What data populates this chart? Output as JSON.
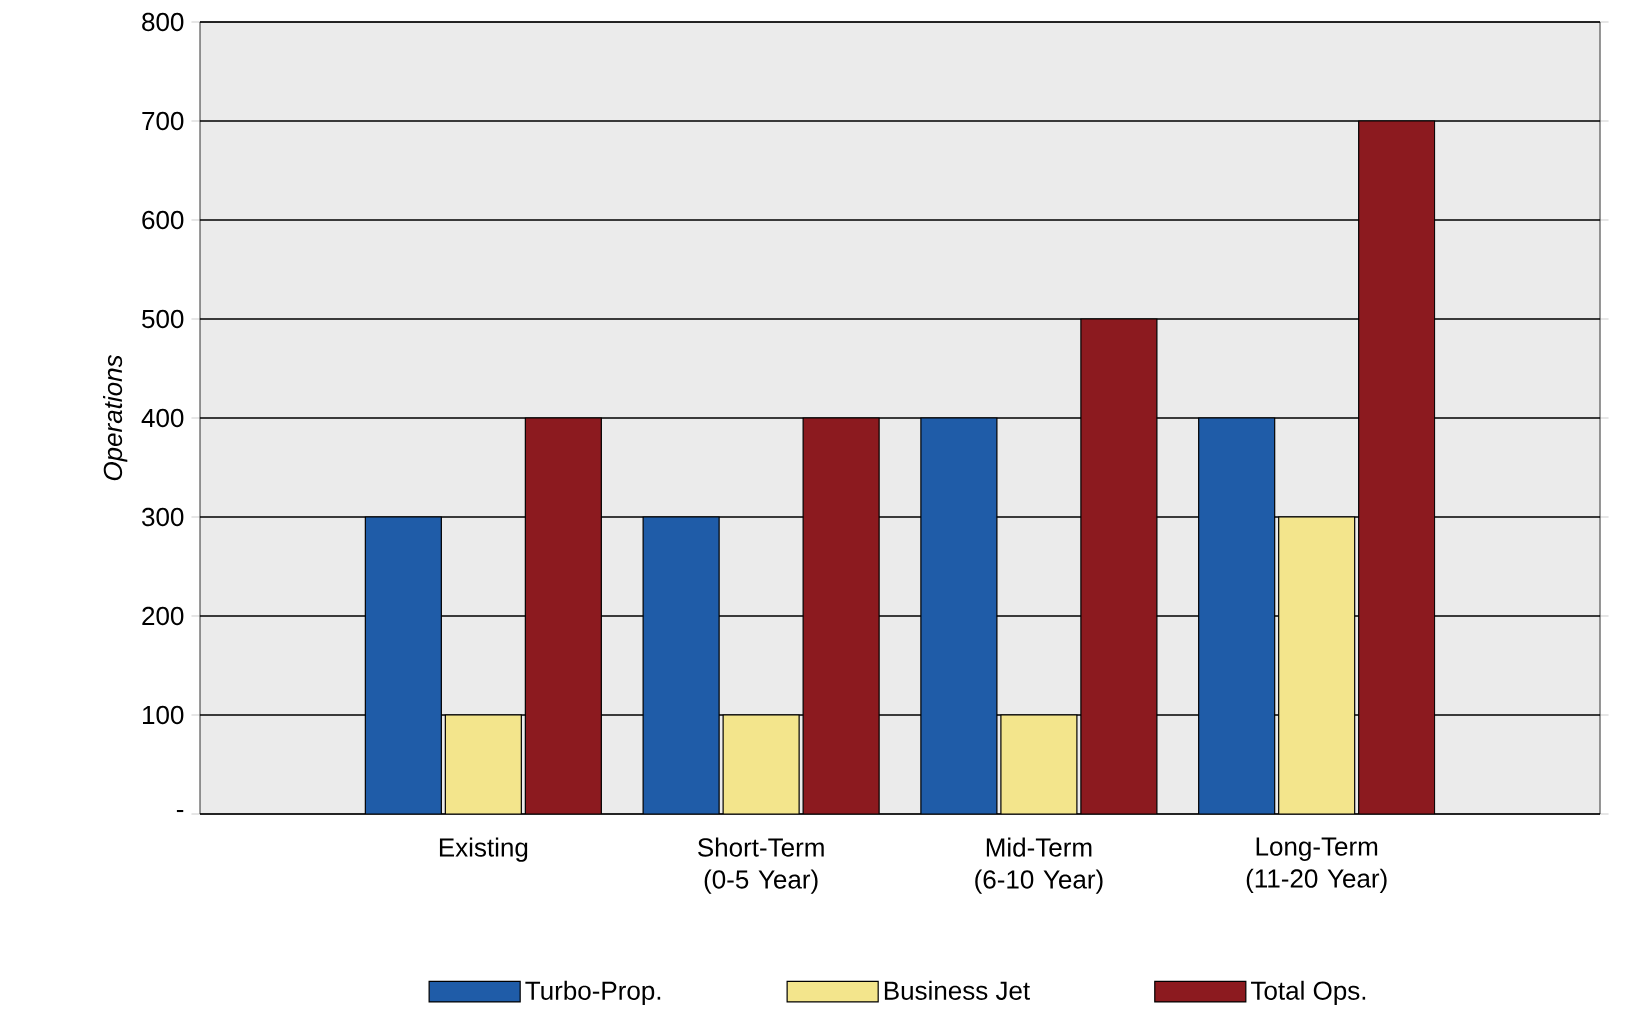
{
  "chart_data": {
    "type": "bar",
    "ylabel": "Operations",
    "categories": [
      "Existing",
      "Short-Term (0-5 Year)",
      "Mid-Term (6-10 Year)",
      "Long-Term (11-20 Year)"
    ],
    "series": [
      {
        "name": "Turbo-Prop.",
        "color": "#1f5ca8",
        "values": [
          300,
          300,
          400,
          400
        ]
      },
      {
        "name": "Business Jet",
        "color": "#f3e58c",
        "values": [
          100,
          100,
          100,
          300
        ]
      },
      {
        "name": "Total Ops.",
        "color": "#8c1a1f",
        "values": [
          400,
          400,
          500,
          700
        ]
      }
    ],
    "ylim": [
      0,
      800
    ],
    "yticks": [
      {
        "value": 0,
        "label": "-"
      },
      100,
      200,
      300,
      400,
      500,
      600,
      700,
      800
    ],
    "grid": "y",
    "legend": "bottom"
  }
}
